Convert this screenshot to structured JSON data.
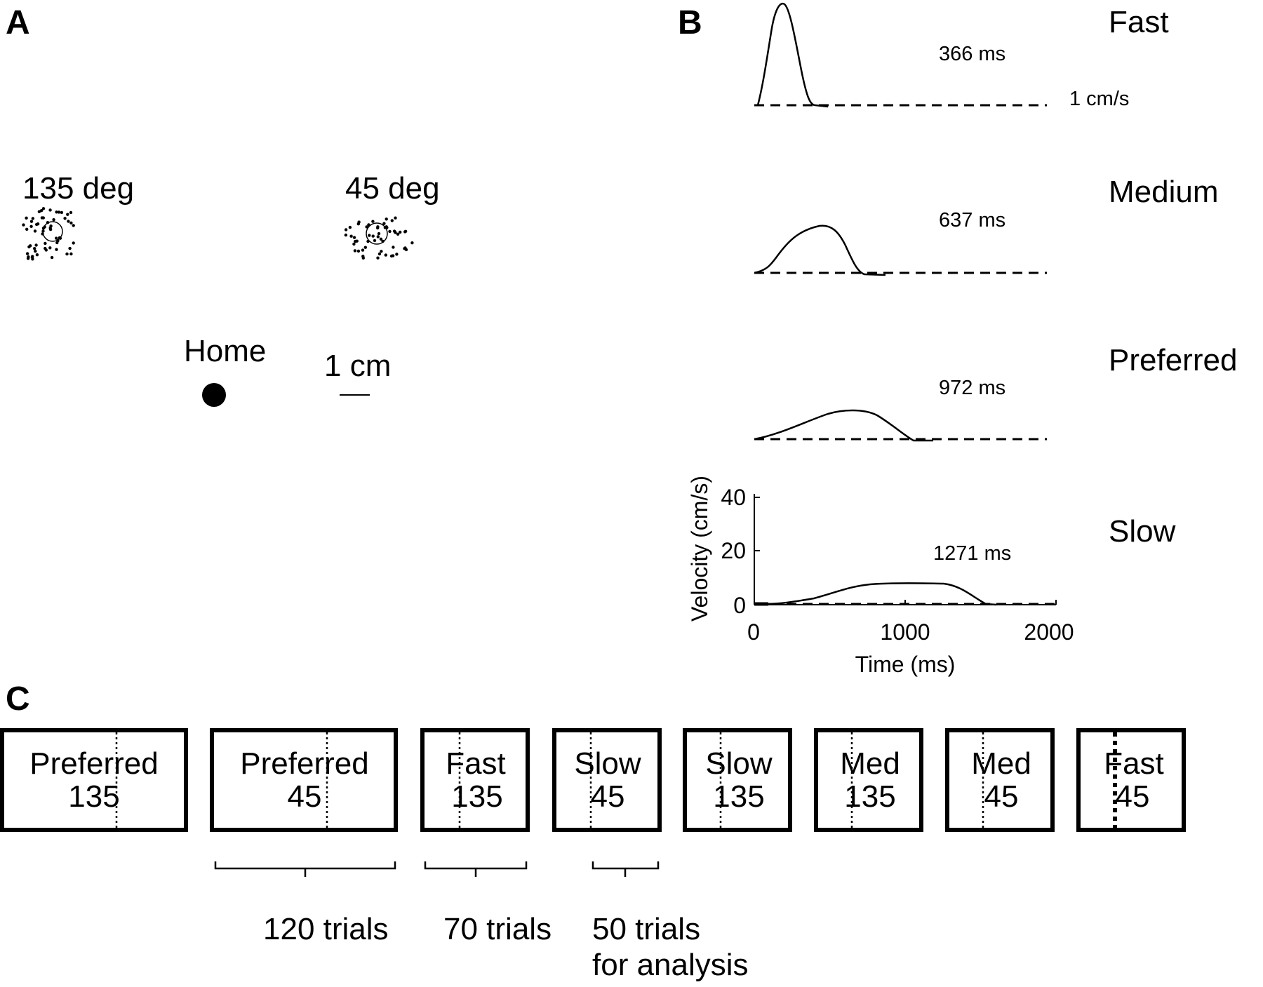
{
  "panel_a": {
    "letter": "A",
    "target_left_label": "135 deg",
    "target_right_label": "45 deg",
    "home_label": "Home",
    "scale_label": "1 cm"
  },
  "panel_b": {
    "letter": "B",
    "conditions": [
      {
        "name": "Fast",
        "duration_label": "366 ms"
      },
      {
        "name": "Medium",
        "duration_label": "637 ms"
      },
      {
        "name": "Preferred",
        "duration_label": "972 ms"
      },
      {
        "name": "Slow",
        "duration_label": "1271 ms"
      }
    ],
    "threshold_label": "1 cm/s",
    "ylabel": "Velocity (cm/s)",
    "xlabel": "Time (ms)",
    "yticks": [
      "0",
      "20",
      "40"
    ],
    "xticks": [
      "0",
      "1000",
      "2000"
    ]
  },
  "panel_c": {
    "letter": "C",
    "blocks": [
      {
        "speed": "Preferred",
        "direction": "135"
      },
      {
        "speed": "Preferred",
        "direction": "45"
      },
      {
        "speed": "Fast",
        "direction": "135"
      },
      {
        "speed": "Slow",
        "direction": "45"
      },
      {
        "speed": "Slow",
        "direction": "135"
      },
      {
        "speed": "Med",
        "direction": "135"
      },
      {
        "speed": "Med",
        "direction": "45"
      },
      {
        "speed": "Fast",
        "direction": "45"
      }
    ],
    "brackets": [
      {
        "label": "120 trials"
      },
      {
        "label": "70 trials"
      },
      {
        "label": "50 trials",
        "label2": "for analysis"
      }
    ]
  }
}
